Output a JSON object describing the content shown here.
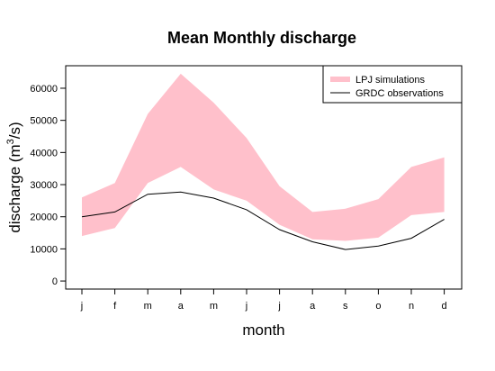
{
  "chart_data": {
    "type": "area",
    "title": "Mean Monthly discharge",
    "xlabel": "month",
    "ylabel_main": "discharge (m",
    "ylabel_sup": "3",
    "ylabel_end": "/s)",
    "categories": [
      "j",
      "f",
      "m",
      "a",
      "m",
      "j",
      "j",
      "a",
      "s",
      "o",
      "n",
      "d"
    ],
    "ylim": [
      -2500,
      67000
    ],
    "yticks": [
      0,
      10000,
      20000,
      30000,
      40000,
      50000,
      60000
    ],
    "legend_position": "top-right",
    "series": [
      {
        "name": "LPJ simulations",
        "kind": "band",
        "color": "#ffc0cb",
        "upper": [
          26000,
          30500,
          52000,
          64500,
          55500,
          44500,
          29500,
          21500,
          22500,
          25500,
          35500,
          38500
        ],
        "lower": [
          14000,
          16500,
          30500,
          35500,
          28500,
          25000,
          17500,
          13000,
          12500,
          13500,
          20500,
          21500
        ]
      },
      {
        "name": "GRDC observations",
        "kind": "line",
        "color": "#000000",
        "values": [
          20000,
          21500,
          27000,
          27700,
          25800,
          22200,
          16000,
          12200,
          9800,
          10900,
          13300,
          19200
        ]
      }
    ]
  }
}
